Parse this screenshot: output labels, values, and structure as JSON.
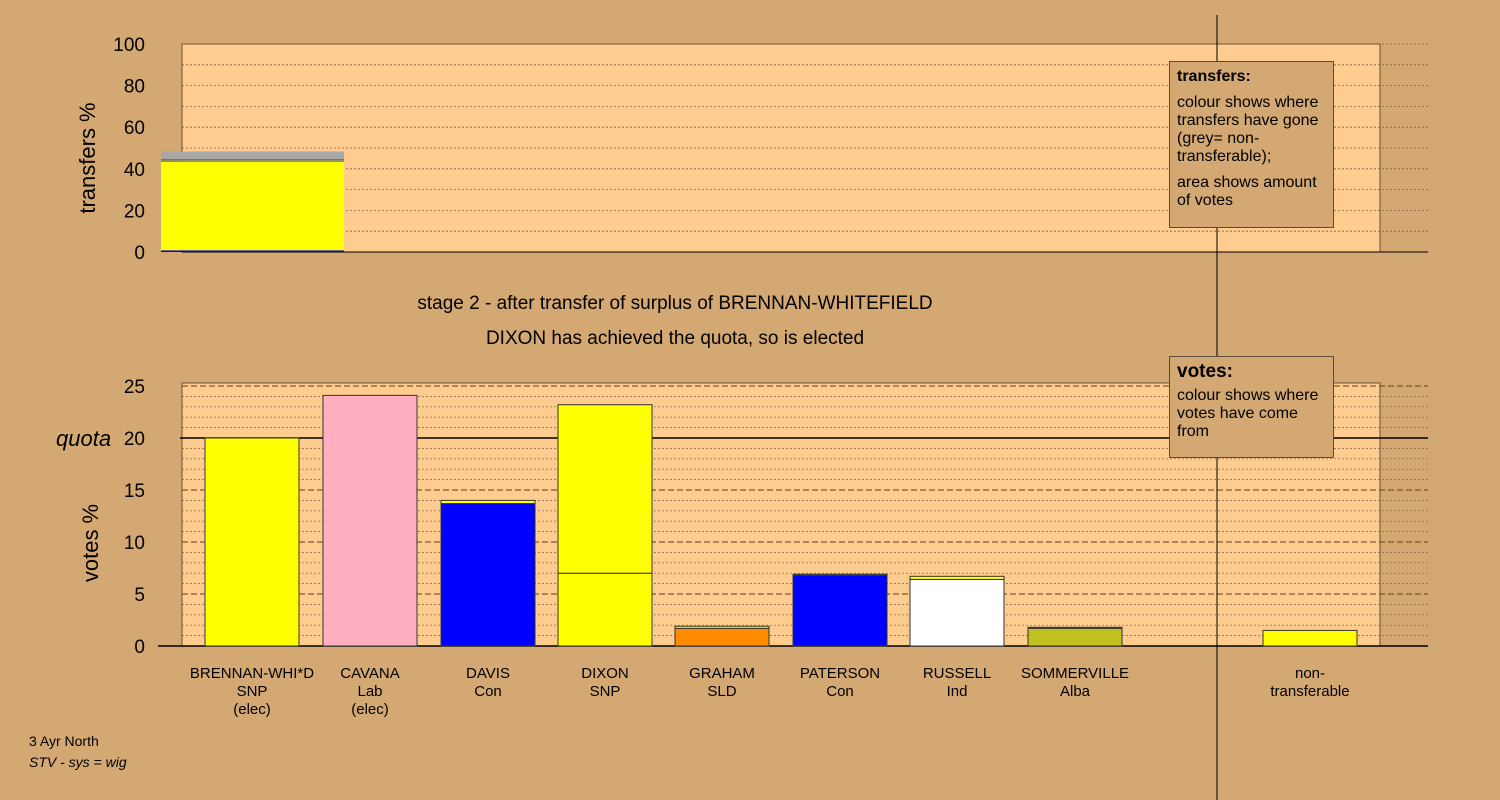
{
  "chart_data": [
    {
      "type": "bar",
      "stacked": true,
      "ylabel": "transfers %",
      "ylim": [
        0,
        100
      ],
      "yticks": [
        0,
        20,
        40,
        60,
        80,
        100
      ],
      "bar_label": "BRENNAN-WHITEFIELD surplus",
      "segments": [
        {
          "name": "DAVIS",
          "value": 0.8,
          "color": "#0000ff"
        },
        {
          "name": "DIXON",
          "value": 42.5,
          "color": "#ffff00"
        },
        {
          "name": "GRAHAM",
          "value": 0.4,
          "color": "#ff8c00"
        },
        {
          "name": "PATERSON",
          "value": 0.2,
          "color": "#0000ff"
        },
        {
          "name": "RUSSELL",
          "value": 0.2,
          "color": "#ffff66"
        },
        {
          "name": "SOMMERVILLE",
          "value": 0.2,
          "color": "#c0c020"
        },
        {
          "name": "non-transferable",
          "value": 4.0,
          "color": "#a8a8a8"
        }
      ]
    },
    {
      "type": "bar",
      "stacked": true,
      "ylabel": "votes %",
      "ylim": [
        0,
        25
      ],
      "yticks": [
        0,
        5,
        10,
        15,
        20,
        25
      ],
      "quota": 20,
      "quota_label": "quota",
      "categories": [
        {
          "name": "BRENNAN-WHI*D",
          "party": "SNP",
          "status": "(elec)"
        },
        {
          "name": "CAVANA",
          "party": "Lab",
          "status": "(elec)"
        },
        {
          "name": "DAVIS",
          "party": "Con",
          "status": ""
        },
        {
          "name": "DIXON",
          "party": "SNP",
          "status": ""
        },
        {
          "name": "GRAHAM",
          "party": "SLD",
          "status": ""
        },
        {
          "name": "PATERSON",
          "party": "Con",
          "status": ""
        },
        {
          "name": "RUSSELL",
          "party": "Ind",
          "status": ""
        },
        {
          "name": "SOMMERVILLE",
          "party": "Alba",
          "status": ""
        },
        {
          "name": "non-",
          "party": "transferable",
          "status": ""
        }
      ],
      "bars": [
        [
          {
            "value": 20.0,
            "color": "#ffff00"
          }
        ],
        [
          {
            "value": 24.1,
            "color": "#ffb0c0"
          }
        ],
        [
          {
            "value": 13.7,
            "color": "#0000ff"
          },
          {
            "value": 0.3,
            "color": "#ffff00"
          }
        ],
        [
          {
            "value": 7.0,
            "color": "#ffff00"
          },
          {
            "value": 16.2,
            "color": "#ffff00"
          }
        ],
        [
          {
            "value": 1.7,
            "color": "#ff8c00"
          },
          {
            "value": 0.2,
            "color": "#ffff00"
          }
        ],
        [
          {
            "value": 6.8,
            "color": "#0000ff"
          },
          {
            "value": 0.1,
            "color": "#ffff00"
          }
        ],
        [
          {
            "value": 6.4,
            "color": "#ffffff"
          },
          {
            "value": 0.3,
            "color": "#ffff00"
          }
        ],
        [
          {
            "value": 1.7,
            "color": "#c0c020"
          },
          {
            "value": 0.1,
            "color": "#ffff00"
          }
        ],
        [
          {
            "value": 1.5,
            "color": "#ffff00"
          }
        ]
      ]
    }
  ],
  "title": {
    "line1": "stage 2 - after transfer of surplus of BRENNAN-WHITEFIELD",
    "line2": "DIXON has achieved the quota, so is elected"
  },
  "legend_transfers": {
    "title": "transfers:",
    "text1": "colour shows where transfers have gone (grey= non-transferable);",
    "text2": "area shows amount of votes"
  },
  "legend_votes": {
    "title": "votes:",
    "text1": "colour shows where votes have come from"
  },
  "footer": {
    "line1": "3 Ayr North",
    "line2": "STV - sys = wig"
  },
  "colors": {
    "background": "#d4a872",
    "plot_area": "#ffcc90"
  }
}
